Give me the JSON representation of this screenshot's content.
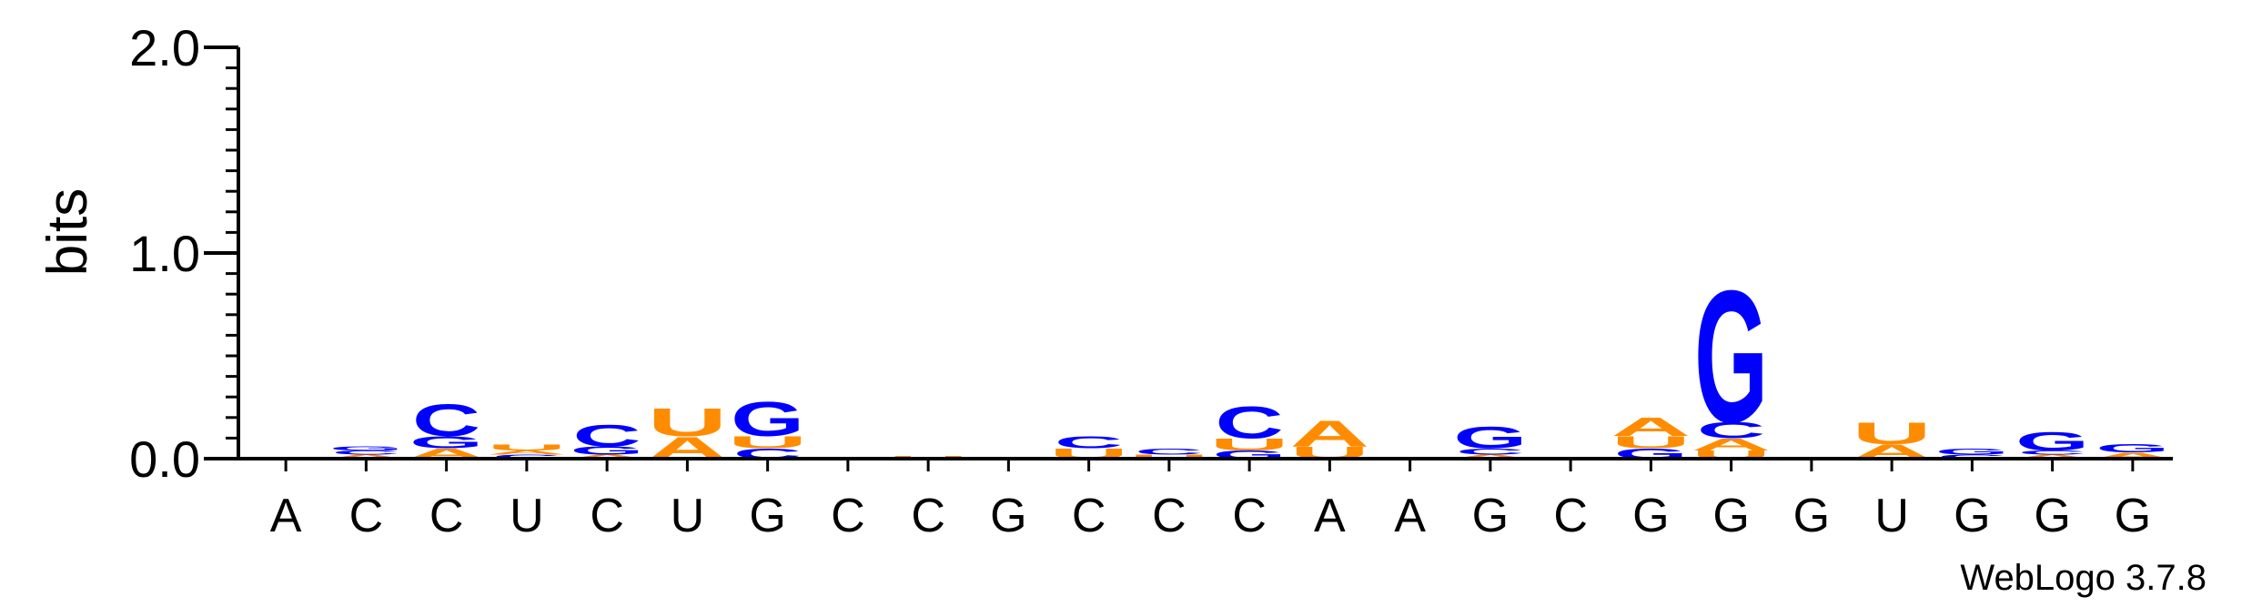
{
  "chart_data": {
    "type": "sequence-logo",
    "ylabel": "bits",
    "ylim": [
      0,
      2.0
    ],
    "yticks": [
      {
        "value": 0.0,
        "label": "0.0"
      },
      {
        "value": 1.0,
        "label": "1.0"
      },
      {
        "value": 2.0,
        "label": "2.0"
      }
    ],
    "xlabels": [
      "A",
      "C",
      "C",
      "U",
      "C",
      "U",
      "G",
      "C",
      "C",
      "G",
      "C",
      "C",
      "C",
      "A",
      "A",
      "G",
      "C",
      "G",
      "G",
      "G",
      "U",
      "G",
      "G",
      "G"
    ],
    "colors": {
      "A": "#ff8c00",
      "U": "#ff8c00",
      "C": "#0000ff",
      "G": "#0000ff"
    },
    "stacks": [
      [],
      [
        {
          "letter": "A",
          "bits": 0.02
        },
        {
          "letter": "C",
          "bits": 0.02
        },
        {
          "letter": "G",
          "bits": 0.02
        }
      ],
      [
        {
          "letter": "A",
          "bits": 0.05
        },
        {
          "letter": "G",
          "bits": 0.06
        },
        {
          "letter": "C",
          "bits": 0.16
        }
      ],
      [
        {
          "letter": "C",
          "bits": 0.02
        },
        {
          "letter": "A",
          "bits": 0.02
        },
        {
          "letter": "U",
          "bits": 0.03
        }
      ],
      [
        {
          "letter": "A",
          "bits": 0.02
        },
        {
          "letter": "G",
          "bits": 0.04
        },
        {
          "letter": "C",
          "bits": 0.11
        }
      ],
      [
        {
          "letter": "A",
          "bits": 0.11
        },
        {
          "letter": "U",
          "bits": 0.14
        }
      ],
      [
        {
          "letter": "C",
          "bits": 0.05
        },
        {
          "letter": "U",
          "bits": 0.06
        },
        {
          "letter": "G",
          "bits": 0.17
        }
      ],
      [],
      [
        {
          "letter": "U",
          "bits": 0.015
        }
      ],
      [],
      [
        {
          "letter": "U",
          "bits": 0.05
        },
        {
          "letter": "C",
          "bits": 0.06
        }
      ],
      [
        {
          "letter": "U",
          "bits": 0.02
        },
        {
          "letter": "C",
          "bits": 0.03
        }
      ],
      [
        {
          "letter": "G",
          "bits": 0.04
        },
        {
          "letter": "U",
          "bits": 0.06
        },
        {
          "letter": "C",
          "bits": 0.16
        }
      ],
      [
        {
          "letter": "U",
          "bits": 0.06
        },
        {
          "letter": "A",
          "bits": 0.13
        }
      ],
      [],
      [
        {
          "letter": "A",
          "bits": 0.02
        },
        {
          "letter": "C",
          "bits": 0.03
        },
        {
          "letter": "G",
          "bits": 0.11
        }
      ],
      [],
      [
        {
          "letter": "G",
          "bits": 0.05
        },
        {
          "letter": "U",
          "bits": 0.06
        },
        {
          "letter": "A",
          "bits": 0.09
        }
      ],
      [
        {
          "letter": "U",
          "bits": 0.04
        },
        {
          "letter": "A",
          "bits": 0.06
        },
        {
          "letter": "C",
          "bits": 0.08
        },
        {
          "letter": "G",
          "bits": 0.66
        }
      ],
      [],
      [
        {
          "letter": "A",
          "bits": 0.07
        },
        {
          "letter": "U",
          "bits": 0.11
        }
      ],
      [
        {
          "letter": "C",
          "bits": 0.02
        },
        {
          "letter": "G",
          "bits": 0.03
        }
      ],
      [
        {
          "letter": "A",
          "bits": 0.02
        },
        {
          "letter": "C",
          "bits": 0.02
        },
        {
          "letter": "G",
          "bits": 0.09
        }
      ],
      [
        {
          "letter": "A",
          "bits": 0.03
        },
        {
          "letter": "G",
          "bits": 0.04
        }
      ]
    ]
  },
  "credit": "WebLogo 3.7.8"
}
